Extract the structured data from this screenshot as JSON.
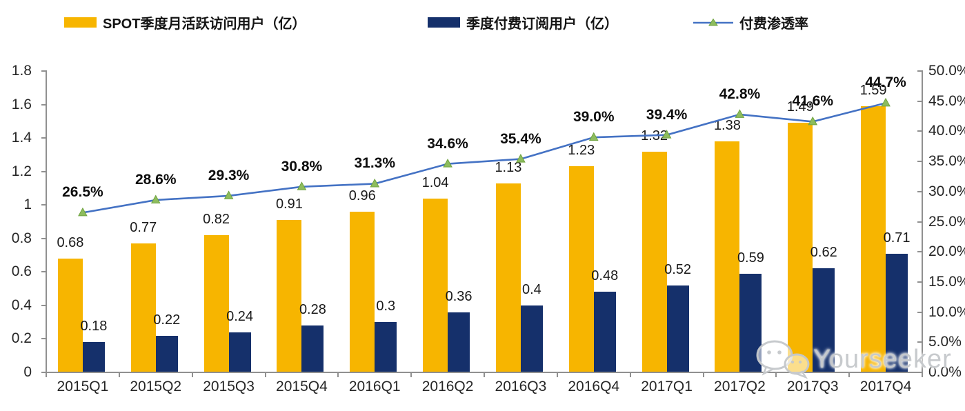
{
  "watermark": {
    "text": "Yourseeker"
  },
  "colors": {
    "mau_bar": "#F7B500",
    "subs_bar": "#15306B",
    "line": "#4472C4",
    "marker_fill": "#8DBC5E",
    "marker_edge": "#6FA33F",
    "axis": "#909090",
    "label_text": "#1a1a1a"
  },
  "chart_data": {
    "type": "bar",
    "subtype": "combo-bar-line",
    "title": "",
    "xlabel": "",
    "ylabel_left": "",
    "ylabel_right": "",
    "grid": false,
    "legend_position": "top",
    "categories": [
      "2015Q1",
      "2015Q2",
      "2015Q3",
      "2015Q4",
      "2016Q1",
      "2016Q2",
      "2016Q3",
      "2016Q4",
      "2017Q1",
      "2017Q2",
      "2017Q3",
      "2017Q4"
    ],
    "series": [
      {
        "name": "SPOT季度月活跃访问用户（亿）",
        "type": "bar",
        "axis": "left",
        "color": "#F7B500",
        "values": [
          0.68,
          0.77,
          0.82,
          0.91,
          0.96,
          1.04,
          1.13,
          1.23,
          1.32,
          1.38,
          1.49,
          1.59
        ],
        "labels": [
          "0.68",
          "0.77",
          "0.82",
          "0.91",
          "0.96",
          "1.04",
          "1.13",
          "1.23",
          "1.32",
          "1.38",
          "1.49",
          "1.59"
        ]
      },
      {
        "name": "季度付费订阅用户（亿）",
        "type": "bar",
        "axis": "left",
        "color": "#15306B",
        "values": [
          0.18,
          0.22,
          0.24,
          0.28,
          0.3,
          0.36,
          0.4,
          0.48,
          0.52,
          0.59,
          0.62,
          0.71
        ],
        "labels": [
          "0.18",
          "0.22",
          "0.24",
          "0.28",
          "0.3",
          "0.36",
          "0.4",
          "0.48",
          "0.52",
          "0.59",
          "0.62",
          "0.71"
        ]
      },
      {
        "name": "付费渗透率",
        "type": "line",
        "axis": "right",
        "color": "#4472C4",
        "marker": "triangle-up",
        "marker_fill": "#8DBC5E",
        "marker_edge": "#6FA33F",
        "values": [
          26.5,
          28.6,
          29.3,
          30.8,
          31.3,
          34.6,
          35.4,
          39.0,
          39.4,
          42.8,
          41.6,
          44.7
        ],
        "labels": [
          "26.5%",
          "28.6%",
          "29.3%",
          "30.8%",
          "31.3%",
          "34.6%",
          "35.4%",
          "39.0%",
          "39.4%",
          "42.8%",
          "41.6%",
          "44.7%"
        ]
      }
    ],
    "left_axis": {
      "min": 0,
      "max": 1.8,
      "step": 0.2,
      "tick_labels": [
        "1.8",
        "1.6",
        "1.4",
        "1.2",
        "1",
        "0.8",
        "0.6",
        "0.4",
        "0.2",
        "0"
      ]
    },
    "right_axis": {
      "min": 0,
      "max": 50,
      "step": 5,
      "tick_labels": [
        "50.0%",
        "45.0%",
        "40.0%",
        "35.0%",
        "30.0%",
        "25.0%",
        "20.0%",
        "15.0%",
        "10.0%",
        "5.0%",
        "0.0%"
      ]
    }
  }
}
